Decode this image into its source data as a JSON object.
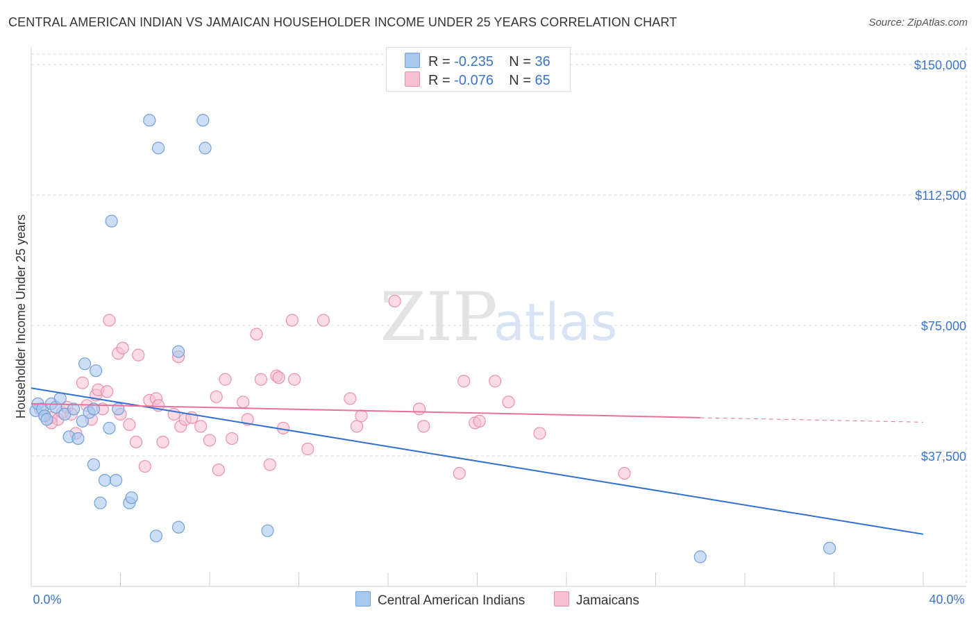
{
  "title": "CENTRAL AMERICAN INDIAN VS JAMAICAN HOUSEHOLDER INCOME UNDER 25 YEARS CORRELATION CHART",
  "source": "Source: ZipAtlas.com",
  "watermark": {
    "zip": "ZIP",
    "atlas": "atlas"
  },
  "legend": {
    "r_label": "R =",
    "n_label": "N =",
    "series1": {
      "r": "-0.235",
      "n": "36"
    },
    "series2": {
      "r": "-0.076",
      "n": "65"
    }
  },
  "bottom_legend": {
    "series1": "Central American Indians",
    "series2": "Jamaicans"
  },
  "colors": {
    "series1_fill": "#a8c8f0",
    "series1_stroke": "#6fa0dc",
    "series1_line": "#2f6fd0",
    "series2_fill": "#f7c0d2",
    "series2_stroke": "#e890ae",
    "series2_line": "#e8709a",
    "grid": "#dddddd",
    "tick_text": "#3a74c9"
  },
  "chart_data": {
    "type": "scatter",
    "title": "CENTRAL AMERICAN INDIAN VS JAMAICAN HOUSEHOLDER INCOME UNDER 25 YEARS CORRELATION CHART",
    "xlabel": "",
    "ylabel": "Householder Income Under 25 years",
    "xlim": [
      0,
      40
    ],
    "ylim": [
      0,
      155000
    ],
    "x_tick_labels": [
      "0.0%",
      "40.0%"
    ],
    "y_ticks": [
      37500,
      75000,
      112500,
      150000
    ],
    "y_tick_labels": [
      "$37,500",
      "$75,000",
      "$112,500",
      "$150,000"
    ],
    "grid": true,
    "legend_position": "top-center",
    "series": [
      {
        "name": "Central American Indians",
        "r": -0.235,
        "n": 36,
        "trend": {
          "x": [
            0,
            40
          ],
          "y": [
            57000,
            15000
          ]
        },
        "points": [
          [
            0.2,
            50500
          ],
          [
            0.3,
            52500
          ],
          [
            0.5,
            51000
          ],
          [
            0.6,
            49000
          ],
          [
            0.7,
            48000
          ],
          [
            0.9,
            52500
          ],
          [
            1.1,
            51500
          ],
          [
            1.3,
            54000
          ],
          [
            1.5,
            49500
          ],
          [
            1.7,
            43000
          ],
          [
            1.9,
            51000
          ],
          [
            2.1,
            42500
          ],
          [
            2.3,
            47500
          ],
          [
            2.4,
            64000
          ],
          [
            2.6,
            50000
          ],
          [
            2.8,
            51000
          ],
          [
            2.9,
            62000
          ],
          [
            2.8,
            35000
          ],
          [
            3.1,
            24000
          ],
          [
            3.3,
            30500
          ],
          [
            3.5,
            45500
          ],
          [
            3.6,
            105000
          ],
          [
            3.8,
            30500
          ],
          [
            3.9,
            51000
          ],
          [
            4.4,
            24000
          ],
          [
            4.5,
            25500
          ],
          [
            5.3,
            134000
          ],
          [
            5.7,
            126000
          ],
          [
            5.6,
            14500
          ],
          [
            6.6,
            67500
          ],
          [
            6.6,
            17000
          ],
          [
            7.7,
            134000
          ],
          [
            7.8,
            126000
          ],
          [
            10.6,
            16000
          ],
          [
            30.0,
            8500
          ],
          [
            35.8,
            11000
          ]
        ]
      },
      {
        "name": "Jamaicans",
        "r": -0.076,
        "n": 65,
        "trend": {
          "x": [
            0,
            30
          ],
          "y": [
            52500,
            48500
          ]
        },
        "trend_dashed": {
          "x": [
            30,
            40
          ],
          "y": [
            48500,
            47200
          ]
        },
        "points": [
          [
            0.4,
            51000
          ],
          [
            0.6,
            49000
          ],
          [
            0.9,
            48500
          ],
          [
            1.2,
            48000
          ],
          [
            1.4,
            50000
          ],
          [
            1.6,
            51500
          ],
          [
            1.8,
            49500
          ],
          [
            2.0,
            44000
          ],
          [
            2.3,
            58500
          ],
          [
            2.5,
            52000
          ],
          [
            2.7,
            48000
          ],
          [
            2.9,
            55000
          ],
          [
            3.0,
            56500
          ],
          [
            3.2,
            51000
          ],
          [
            3.4,
            56000
          ],
          [
            3.5,
            76500
          ],
          [
            3.9,
            67000
          ],
          [
            4.0,
            49500
          ],
          [
            4.1,
            68500
          ],
          [
            4.4,
            46500
          ],
          [
            4.8,
            66500
          ],
          [
            4.7,
            41500
          ],
          [
            5.1,
            34500
          ],
          [
            5.3,
            53500
          ],
          [
            5.6,
            54000
          ],
          [
            5.7,
            52000
          ],
          [
            5.9,
            41500
          ],
          [
            6.4,
            49500
          ],
          [
            6.6,
            66000
          ],
          [
            6.7,
            46000
          ],
          [
            6.9,
            48000
          ],
          [
            7.2,
            48500
          ],
          [
            7.6,
            46000
          ],
          [
            8.0,
            42000
          ],
          [
            8.3,
            54500
          ],
          [
            8.4,
            33500
          ],
          [
            8.7,
            59500
          ],
          [
            9.0,
            42500
          ],
          [
            9.5,
            53000
          ],
          [
            9.7,
            48000
          ],
          [
            10.1,
            72500
          ],
          [
            10.3,
            59500
          ],
          [
            10.7,
            35000
          ],
          [
            11.0,
            60500
          ],
          [
            11.1,
            60000
          ],
          [
            11.3,
            45500
          ],
          [
            11.7,
            76500
          ],
          [
            11.8,
            59500
          ],
          [
            12.4,
            39500
          ],
          [
            13.1,
            76500
          ],
          [
            14.3,
            54000
          ],
          [
            14.6,
            46000
          ],
          [
            14.8,
            49000
          ],
          [
            16.3,
            82000
          ],
          [
            17.4,
            51000
          ],
          [
            17.6,
            46000
          ],
          [
            19.2,
            32500
          ],
          [
            19.4,
            59000
          ],
          [
            19.9,
            47000
          ],
          [
            20.1,
            47500
          ],
          [
            20.8,
            59000
          ],
          [
            21.4,
            53000
          ],
          [
            22.8,
            44000
          ],
          [
            26.6,
            32500
          ],
          [
            0.9,
            47000
          ]
        ]
      }
    ]
  }
}
